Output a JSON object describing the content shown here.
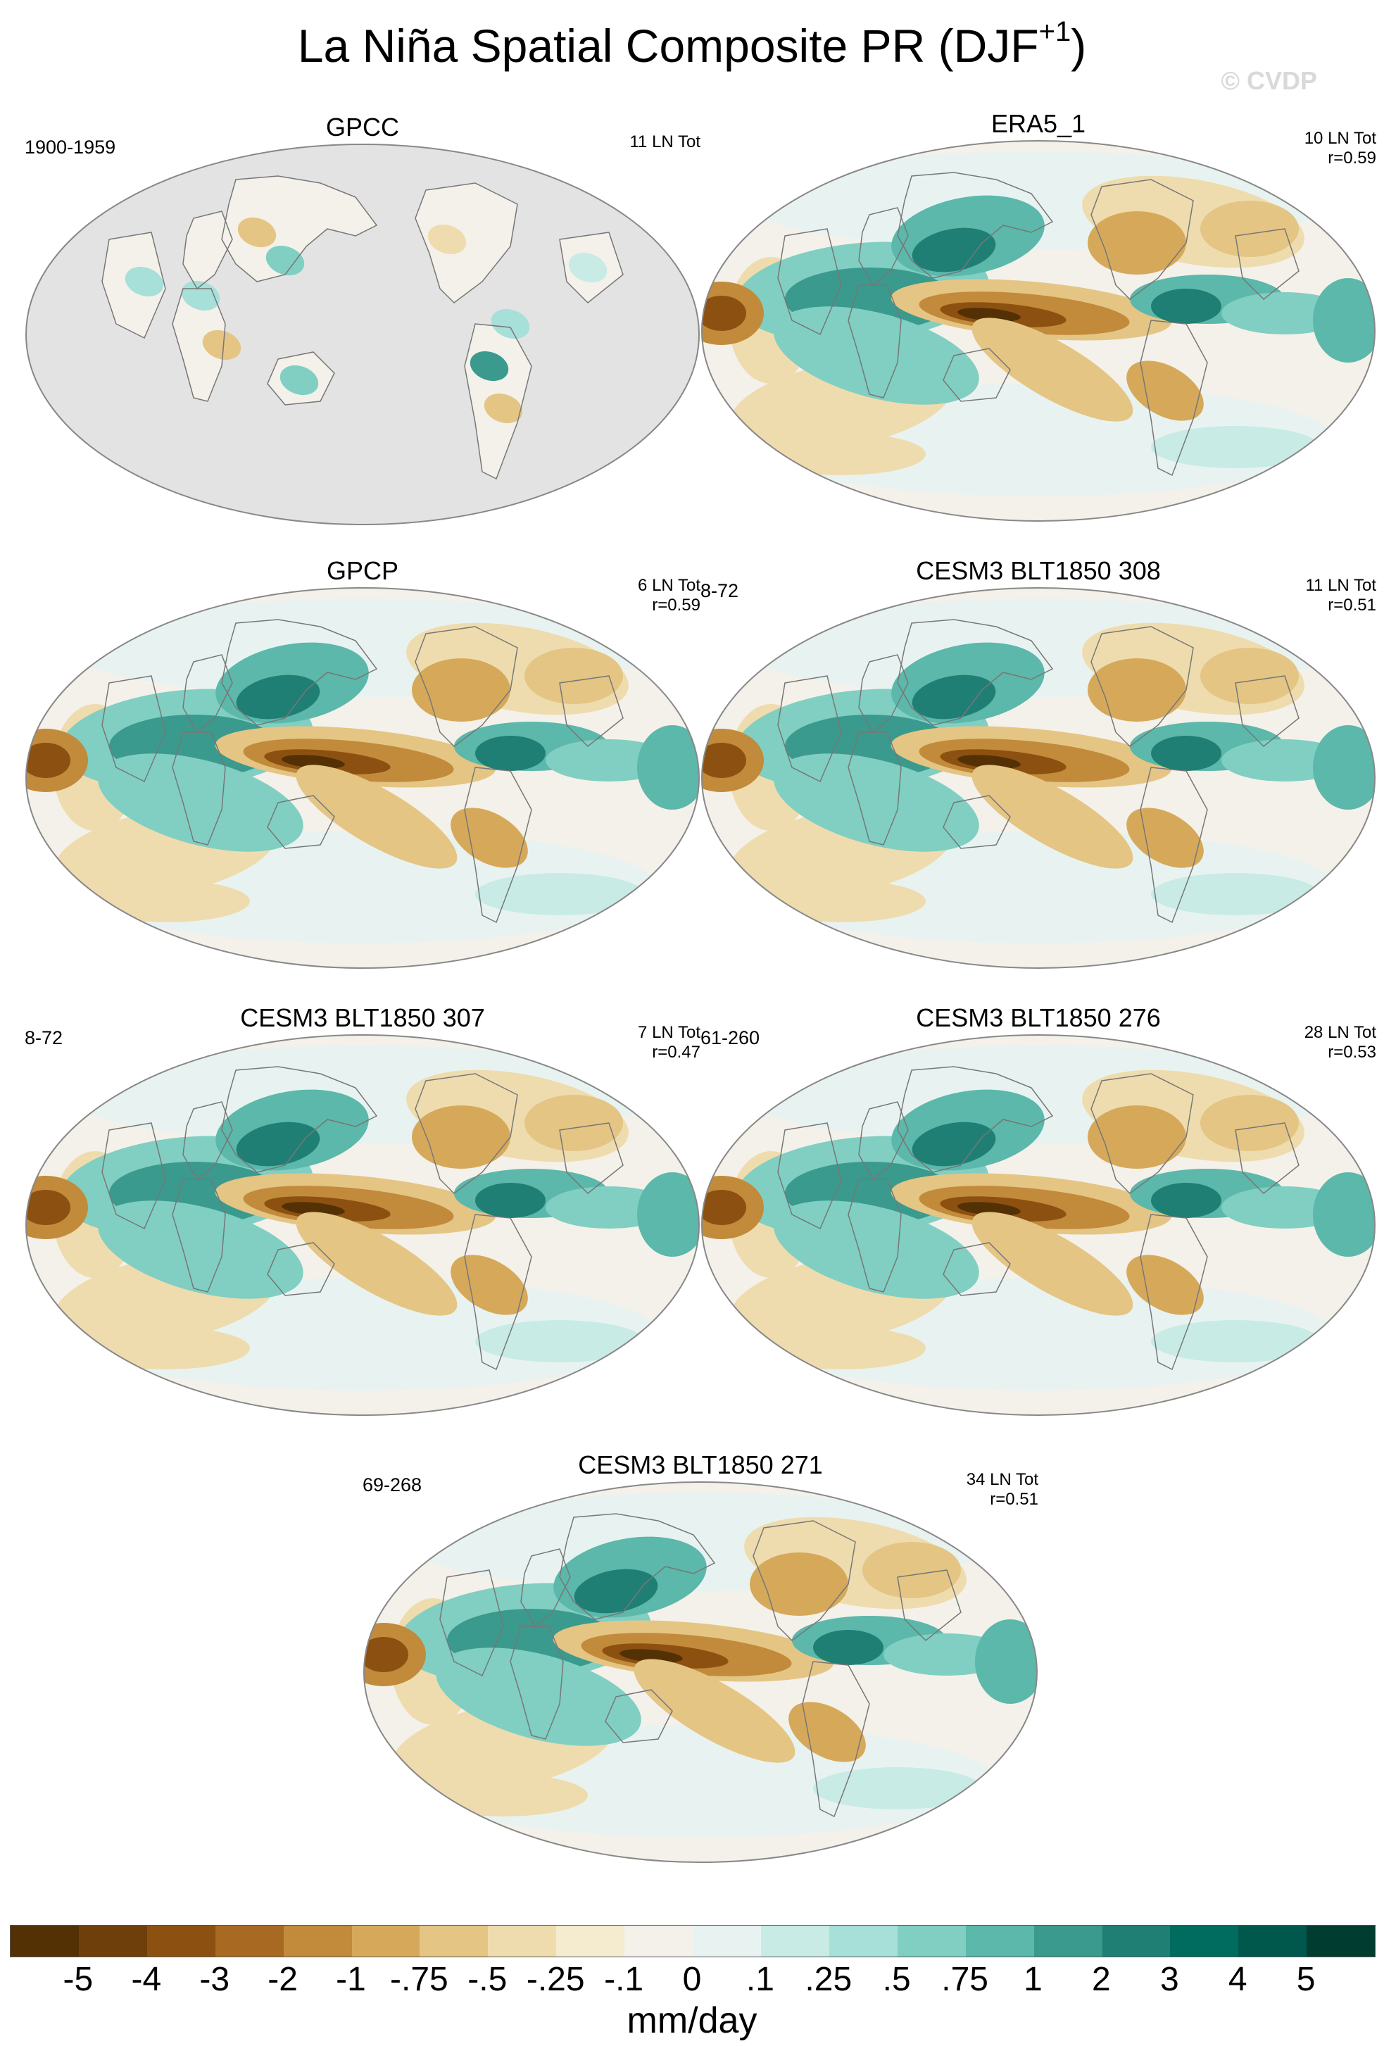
{
  "figure": {
    "title": "La Niña Spatial Composite PR (DJF",
    "title_superscript": "+1",
    "title_close": ")",
    "watermark": "© CVDP"
  },
  "panels": [
    {
      "title": "GPCC",
      "period": "1900-1959",
      "count": "11 LN Tot",
      "corr": "",
      "ocean_masked": true
    },
    {
      "title": "ERA5_1",
      "period": "",
      "count": "10 LN Tot",
      "corr": "r=0.59",
      "ocean_masked": false
    },
    {
      "title": "GPCP",
      "period": "",
      "count": "6 LN Tot",
      "corr": "r=0.59",
      "ocean_masked": false
    },
    {
      "title": "CESM3 BLT1850 308",
      "period": "8-72",
      "count": "11 LN Tot",
      "corr": "r=0.51",
      "ocean_masked": false
    },
    {
      "title": "CESM3 BLT1850 307",
      "period": "8-72",
      "count": "7 LN Tot",
      "corr": "r=0.47",
      "ocean_masked": false
    },
    {
      "title": "CESM3 BLT1850 276",
      "period": "61-260",
      "count": "28 LN Tot",
      "corr": "r=0.53",
      "ocean_masked": false
    },
    {
      "title": "CESM3 BLT1850 271",
      "period": "69-268",
      "count": "34 LN Tot",
      "corr": "r=0.51",
      "ocean_masked": false
    }
  ],
  "colorbar": {
    "units": "mm/day",
    "labels": [
      "-5",
      "-4",
      "-3",
      "-2",
      "-1",
      "-.75",
      "-.5",
      "-.25",
      "-.1",
      "0",
      ".1",
      ".25",
      ".5",
      ".75",
      "1",
      "2",
      "3",
      "4",
      "5"
    ],
    "colors": [
      "#543005",
      "#6f3f0b",
      "#8c5110",
      "#a86a22",
      "#c28a3b",
      "#d6a95a",
      "#e4c584",
      "#efdcae",
      "#f5ecd0",
      "#f4f1ea",
      "#e8f3f1",
      "#c8ebe5",
      "#a6e0d8",
      "#80cfc2",
      "#5bb8aa",
      "#3a9a8e",
      "#1f7f74",
      "#006b5f",
      "#00574c",
      "#003c30"
    ],
    "missing_color": "#e3e3e3"
  }
}
